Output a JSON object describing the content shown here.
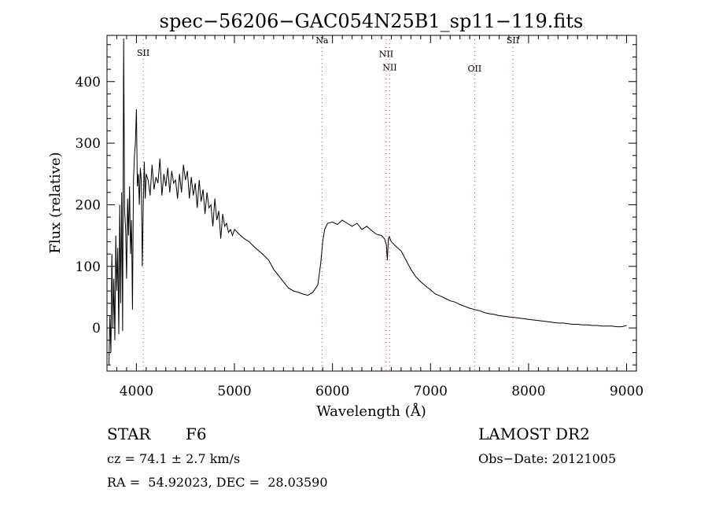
{
  "chart_data": {
    "type": "line",
    "title": "spec−56206−GAC054N25B1_sp11−119.fits",
    "xlabel": "Wavelength (Å)",
    "ylabel": "Flux (relative)",
    "xlim": [
      3700,
      9100
    ],
    "ylim": [
      -70,
      475
    ],
    "grid": false,
    "xticks": [
      {
        "value": 4000,
        "label": "4000"
      },
      {
        "value": 5000,
        "label": "5000"
      },
      {
        "value": 6000,
        "label": "6000"
      },
      {
        "value": 7000,
        "label": "7000"
      },
      {
        "value": 8000,
        "label": "8000"
      },
      {
        "value": 9000,
        "label": "9000"
      }
    ],
    "yticks": [
      {
        "value": 0,
        "label": "0"
      },
      {
        "value": 100,
        "label": "100"
      },
      {
        "value": 200,
        "label": "200"
      },
      {
        "value": 300,
        "label": "300"
      },
      {
        "value": 400,
        "label": "400"
      }
    ],
    "spectral_lines": [
      {
        "label": "SII",
        "wavelength": 4070,
        "label_y": 442
      },
      {
        "label": "Na",
        "wavelength": 5893,
        "label_y": 462
      },
      {
        "label": "NII",
        "wavelength": 6548,
        "label_y": 440
      },
      {
        "label": "NII",
        "wavelength": 6584,
        "label_y": 418
      },
      {
        "label": "OII",
        "wavelength": 7450,
        "label_y": 416
      },
      {
        "label": "SII",
        "wavelength": 7840,
        "label_y": 462
      }
    ],
    "series": [
      {
        "x": [
          3720,
          3730,
          3740,
          3750,
          3760,
          3770,
          3780,
          3790,
          3800,
          3810,
          3820,
          3830,
          3840,
          3850,
          3860,
          3870,
          3880,
          3890,
          3900,
          3910,
          3920,
          3930,
          3940,
          3950,
          3960,
          3970,
          3980,
          3990,
          4000,
          4010,
          4020,
          4030,
          4040,
          4050,
          4060,
          4070,
          4080,
          4090,
          4100,
          4120,
          4140,
          4160,
          4180,
          4200,
          4220,
          4240,
          4260,
          4280,
          4300,
          4320,
          4340,
          4360,
          4380,
          4400,
          4420,
          4440,
          4460,
          4480,
          4500,
          4520,
          4540,
          4560,
          4580,
          4600,
          4620,
          4640,
          4660,
          4680,
          4700,
          4720,
          4740,
          4760,
          4780,
          4800,
          4820,
          4840,
          4860,
          4880,
          4900,
          4920,
          4940,
          4960,
          4980,
          5000,
          5050,
          5100,
          5150,
          5200,
          5250,
          5300,
          5350,
          5400,
          5450,
          5500,
          5550,
          5600,
          5650,
          5700,
          5750,
          5800,
          5850,
          5880,
          5900,
          5920,
          5950,
          6000,
          6050,
          6100,
          6150,
          6200,
          6250,
          6300,
          6350,
          6400,
          6450,
          6500,
          6530,
          6550,
          6560,
          6570,
          6580,
          6600,
          6650,
          6700,
          6750,
          6800,
          6850,
          6900,
          6950,
          7000,
          7050,
          7100,
          7150,
          7200,
          7250,
          7300,
          7350,
          7400,
          7450,
          7500,
          7550,
          7600,
          7650,
          7700,
          7750,
          7800,
          7850,
          7900,
          7950,
          8000,
          8050,
          8100,
          8150,
          8200,
          8250,
          8300,
          8350,
          8400,
          8450,
          8500,
          8550,
          8600,
          8650,
          8700,
          8750,
          8800,
          8850,
          8900,
          8950,
          9000
        ],
        "y": [
          -60,
          20,
          -40,
          120,
          0,
          80,
          -20,
          150,
          60,
          130,
          -10,
          200,
          40,
          220,
          -5,
          470,
          190,
          160,
          80,
          210,
          150,
          230,
          120,
          175,
          30,
          240,
          280,
          300,
          355,
          230,
          250,
          200,
          260,
          240,
          100,
          200,
          270,
          210,
          250,
          240,
          215,
          265,
          225,
          245,
          235,
          275,
          215,
          250,
          230,
          260,
          220,
          255,
          235,
          240,
          210,
          250,
          220,
          265,
          240,
          255,
          210,
          245,
          215,
          235,
          195,
          240,
          205,
          225,
          185,
          220,
          195,
          200,
          165,
          210,
          175,
          190,
          145,
          185,
          165,
          170,
          155,
          160,
          150,
          160,
          152,
          145,
          140,
          132,
          125,
          118,
          110,
          95,
          85,
          75,
          65,
          60,
          58,
          55,
          53,
          58,
          70,
          105,
          140,
          160,
          170,
          172,
          168,
          175,
          170,
          165,
          170,
          160,
          165,
          158,
          152,
          150,
          145,
          135,
          110,
          145,
          148,
          140,
          132,
          125,
          110,
          95,
          83,
          75,
          68,
          62,
          55,
          52,
          48,
          44,
          42,
          38,
          35,
          32,
          30,
          28,
          25,
          23,
          22,
          20,
          19,
          18,
          17,
          16,
          15,
          14,
          13,
          12,
          11,
          10,
          9,
          8,
          8,
          7,
          6,
          6,
          5,
          5,
          4,
          4,
          3,
          3,
          3,
          2,
          2,
          4
        ]
      }
    ]
  },
  "footer": {
    "object_class": "STAR",
    "subclass": "F6",
    "redshift": "cz = 74.1 ± 2.7 km/s",
    "coords": "RA =  54.92023, DEC =  28.03590",
    "survey": "LAMOST DR2",
    "obs_date": "Obs−Date: 20121005"
  }
}
